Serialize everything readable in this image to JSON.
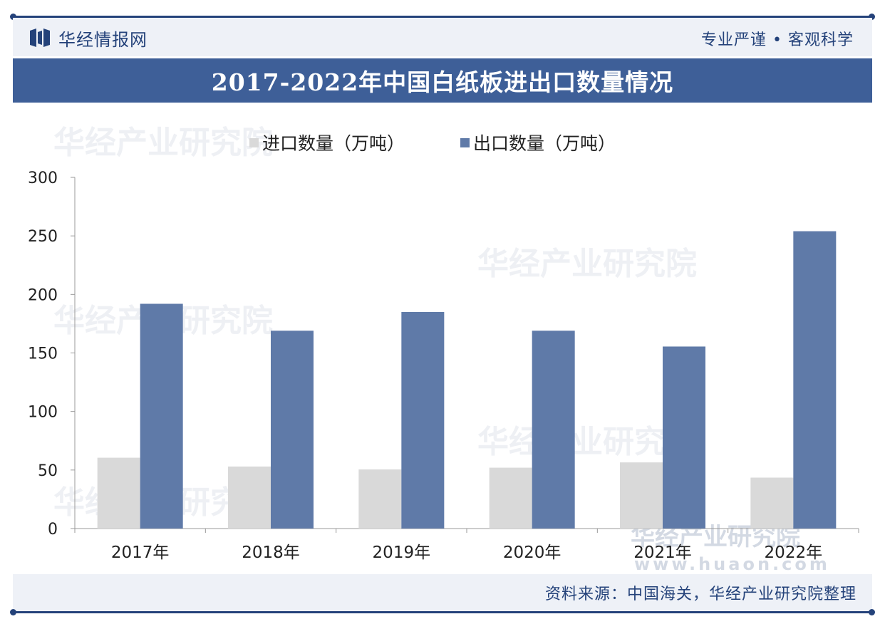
{
  "header": {
    "brand_name": "华经情报网",
    "slogan": "专业严谨 • 客观科学",
    "logo_icon": "hj-logo-icon",
    "accent_color": "#24427a"
  },
  "chart_data": {
    "type": "bar",
    "title": "2017-2022年中国白纸板进出口数量情况",
    "categories": [
      "2017年",
      "2018年",
      "2019年",
      "2020年",
      "2021年",
      "2022年"
    ],
    "series": [
      {
        "name": "进口数量（万吨）",
        "color": "#d9d9d9",
        "values": [
          60.5,
          53,
          50.5,
          52,
          56.5,
          43.5
        ]
      },
      {
        "name": "出口数量（万吨）",
        "color": "#5f7aa8",
        "values": [
          192,
          169,
          185,
          169,
          155.5,
          254
        ]
      }
    ],
    "ylim": [
      0,
      300
    ],
    "yticks": [
      0,
      50,
      100,
      150,
      200,
      250,
      300
    ],
    "grid": false,
    "legend": "top"
  },
  "watermark": {
    "cn": "华经产业研究院",
    "url": "www.huaon.com"
  },
  "footer": {
    "source": "资料来源：中国海关，华经产业研究院整理"
  }
}
